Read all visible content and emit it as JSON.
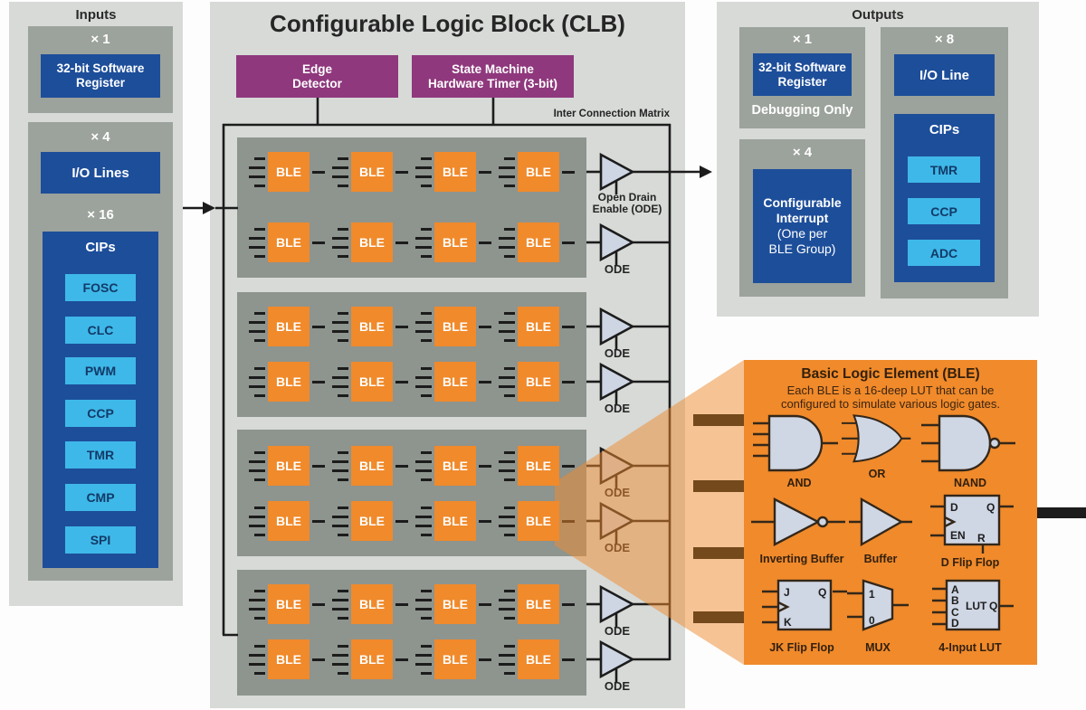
{
  "inputs": {
    "title": "Inputs",
    "reg_count": "× 1",
    "reg_label": "32-bit Software\nRegister",
    "io_count": "× 4",
    "io_label": "I/O Lines",
    "cips_count": "× 16",
    "cips_title": "CIPs",
    "cips": [
      "FOSC",
      "CLC",
      "PWM",
      "CCP",
      "TMR",
      "CMP",
      "SPI"
    ]
  },
  "clb": {
    "title": "Configurable Logic Block (CLB)",
    "edge_detector": "Edge\nDetector",
    "state_timer": "State Machine\nHardware Timer (3-bit)",
    "matrix_label": "Inter Connection Matrix",
    "ble": "BLE",
    "ode_first": "Open Drain\nEnable (ODE)",
    "ode": "ODE"
  },
  "outputs": {
    "title": "Outputs",
    "reg_count": "× 1",
    "reg_label": "32-bit Software\nRegister",
    "reg_note": "Debugging Only",
    "int_count": "× 4",
    "int_label": "Configurable\nInterrupt",
    "int_sub": "(One per\nBLE Group)",
    "io_count": "× 8",
    "io_label": "I/O Line",
    "cips_title": "CIPs",
    "cips": [
      "TMR",
      "CCP",
      "ADC"
    ]
  },
  "ble_panel": {
    "title": "Basic Logic Element (BLE)",
    "subtitle": "Each BLE is a 16-deep LUT that can be\nconfigured to simulate various logic gates.",
    "gates": [
      "AND",
      "OR",
      "NAND",
      "Inverting Buffer",
      "Buffer",
      "D Flip Flop",
      "JK Flip Flop",
      "MUX",
      "4-Input LUT"
    ],
    "pins": {
      "d": "D",
      "q": "Q",
      "en": "EN",
      "r": "R",
      "j": "J",
      "k": "K",
      "one": "1",
      "zero": "0",
      "a": "A",
      "b": "B",
      "c": "C",
      "lut": "LUT"
    }
  },
  "colors": {
    "accent_orange": "#f08a2b",
    "accent_blue": "#1d4e9a",
    "accent_lightblue": "#3eb8e9",
    "accent_purple": "#8f387d"
  }
}
